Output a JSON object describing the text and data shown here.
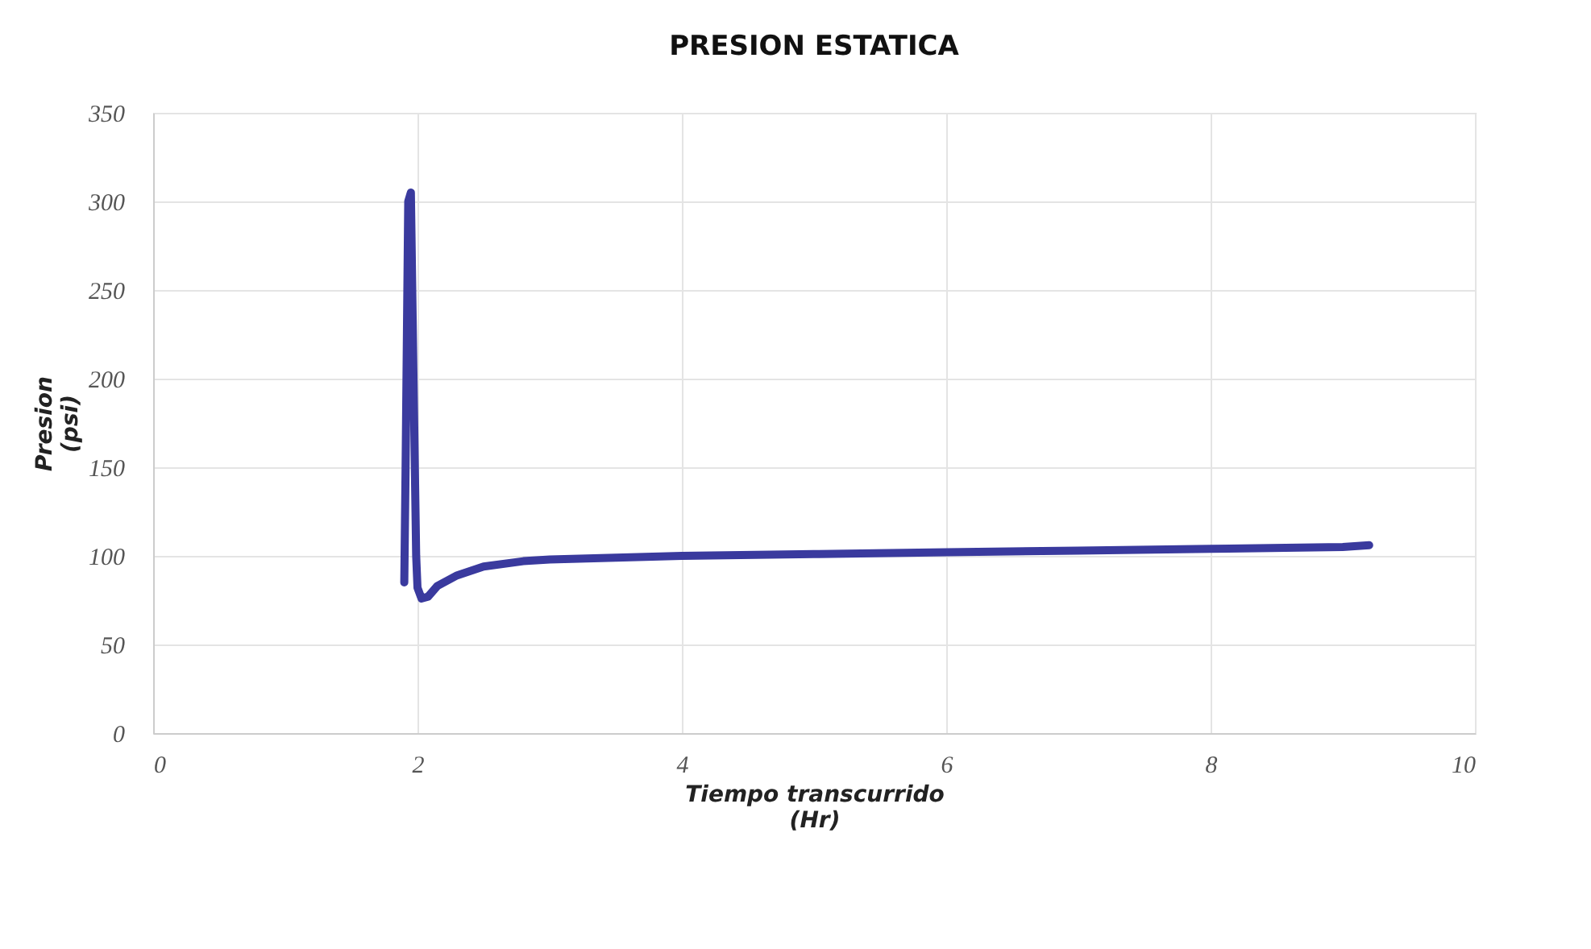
{
  "chart_data": {
    "type": "line",
    "title": "PRESION ESTATICA",
    "xlabel": "Tiempo transcurrido\n(Hr)",
    "ylabel": "Presion\n(psi)",
    "series": [
      {
        "color": "#3a3a9e",
        "x": [
          1.9,
          1.91,
          1.93,
          1.95,
          1.97,
          1.99,
          2.0,
          2.03,
          2.08,
          2.15,
          2.3,
          2.5,
          2.8,
          3.0,
          3.5,
          4,
          5,
          6,
          7,
          8,
          9,
          9.2
        ],
        "values": [
          85,
          150,
          300,
          305,
          200,
          100,
          82,
          76,
          77,
          83,
          89,
          94,
          97,
          98,
          99,
          100,
          101,
          102,
          103,
          104,
          105,
          106
        ]
      }
    ],
    "xlim": [
      0,
      10
    ],
    "xticks": [
      0,
      2,
      4,
      6,
      8,
      10
    ],
    "ylim": [
      0,
      350
    ],
    "yticks": [
      0,
      50,
      100,
      150,
      200,
      250,
      300,
      350
    ],
    "grid": true,
    "marker": "none",
    "line_style": "solid"
  }
}
